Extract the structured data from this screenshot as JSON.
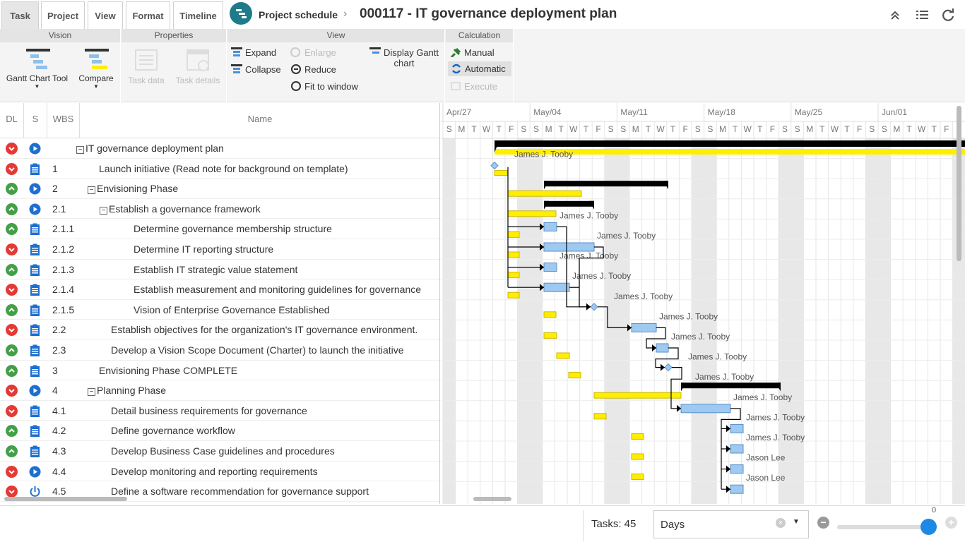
{
  "tabs": [
    {
      "label": "Task",
      "active": true
    },
    {
      "label": "Project",
      "active": false
    },
    {
      "label": "View",
      "active": false
    },
    {
      "label": "Format",
      "active": false
    },
    {
      "label": "Timeline",
      "active": false
    }
  ],
  "breadcrumb": "Project schedule",
  "page_title": "000117 - IT governance deployment plan",
  "ribbon": {
    "vision": {
      "title": "Vision",
      "gantt_tool": "Gantt Chart Tool",
      "compare": "Compare"
    },
    "properties": {
      "title": "Properties",
      "task_data": "Task data",
      "task_details": "Task details"
    },
    "view": {
      "title": "View",
      "expand": "Expand",
      "collapse": "Collapse",
      "enlarge": "Enlarge",
      "reduce": "Reduce",
      "fit": "Fit to window",
      "display_gantt": "Display Gantt chart"
    },
    "calculation": {
      "title": "Calculation",
      "manual": "Manual",
      "automatic": "Automatic",
      "execute": "Execute"
    }
  },
  "grid": {
    "headers": {
      "dl": "DL",
      "s": "S",
      "wbs": "WBS",
      "name": "Name"
    },
    "rows": [
      {
        "dl": "red",
        "s": "play",
        "wbs": "",
        "name": "IT governance deployment plan",
        "indent": 0,
        "toggle": true
      },
      {
        "dl": "red",
        "s": "task",
        "wbs": "1",
        "name": "Launch initiative (Read note for background on template)",
        "indent": 1,
        "toggle": false
      },
      {
        "dl": "green",
        "s": "play",
        "wbs": "2",
        "name": "Envisioning Phase",
        "indent": 1,
        "toggle": true
      },
      {
        "dl": "green",
        "s": "play",
        "wbs": "2.1",
        "name": "Establish a governance framework",
        "indent": 2,
        "toggle": true
      },
      {
        "dl": "green",
        "s": "task",
        "wbs": "2.1.1",
        "name": "Determine governance membership structure",
        "indent": 3,
        "toggle": false
      },
      {
        "dl": "red",
        "s": "task",
        "wbs": "2.1.2",
        "name": "Determine IT reporting structure",
        "indent": 3,
        "toggle": false
      },
      {
        "dl": "green",
        "s": "task",
        "wbs": "2.1.3",
        "name": "Establish IT strategic value statement",
        "indent": 3,
        "toggle": false
      },
      {
        "dl": "red",
        "s": "task",
        "wbs": "2.1.4",
        "name": "Establish measurement and monitoring guidelines for governance",
        "indent": 3,
        "toggle": false
      },
      {
        "dl": "green",
        "s": "task",
        "wbs": "2.1.5",
        "name": "Vision of Enterprise Governance Established",
        "indent": 3,
        "toggle": false
      },
      {
        "dl": "red",
        "s": "task",
        "wbs": "2.2",
        "name": "Establish objectives for the organization's IT governance environment.",
        "indent": 2,
        "toggle": false
      },
      {
        "dl": "green",
        "s": "task",
        "wbs": "2.3",
        "name": "Develop a Vision Scope Document (Charter) to launch the initiative",
        "indent": 2,
        "toggle": false
      },
      {
        "dl": "green",
        "s": "task",
        "wbs": "3",
        "name": "Envisioning Phase COMPLETE",
        "indent": 1,
        "toggle": false
      },
      {
        "dl": "red",
        "s": "play",
        "wbs": "4",
        "name": "Planning Phase",
        "indent": 1,
        "toggle": true
      },
      {
        "dl": "red",
        "s": "task",
        "wbs": "4.1",
        "name": "Detail business requirements for governance",
        "indent": 2,
        "toggle": false
      },
      {
        "dl": "green",
        "s": "task",
        "wbs": "4.2",
        "name": "Define governance workflow",
        "indent": 2,
        "toggle": false
      },
      {
        "dl": "green",
        "s": "task",
        "wbs": "4.3",
        "name": "Develop Business Case guidelines and procedures",
        "indent": 2,
        "toggle": false
      },
      {
        "dl": "red",
        "s": "play",
        "wbs": "4.4",
        "name": "Develop monitoring and reporting requirements",
        "indent": 2,
        "toggle": false
      },
      {
        "dl": "red",
        "s": "power",
        "wbs": "4.5",
        "name": "Define a software recommendation for governance support",
        "indent": 2,
        "toggle": false
      }
    ]
  },
  "timeline": {
    "weeks": [
      "Apr/27",
      "May/04",
      "May/11",
      "May/18",
      "May/25",
      "Jun/01"
    ],
    "day_letters": [
      "S",
      "M",
      "T",
      "W",
      "T",
      "F",
      "S"
    ]
  },
  "resources": {
    "r1": "James J. Tooby",
    "r2": "James J. Tooby",
    "r3": "James J. Tooby",
    "r4": "James J. Tooby",
    "r5": "James J. Tooby",
    "r6": "James J. Tooby",
    "r7": "James J. Tooby",
    "r8": "James J. Tooby",
    "r9": "James J. Tooby",
    "r10": "James J. Tooby",
    "r11": "James J. Tooby",
    "r12": "James J. Tooby",
    "r13": "Jason Lee",
    "r14": "Jason Lee"
  },
  "footer": {
    "tasks": "Tasks: 45",
    "scale": "Days",
    "zoom_value": "0"
  },
  "colors": {
    "accent": "#1d7b8a",
    "baseline": "#ffee00",
    "task": "#9ec9f0",
    "summary": "#000000",
    "weekend": "#e8e8e8"
  }
}
